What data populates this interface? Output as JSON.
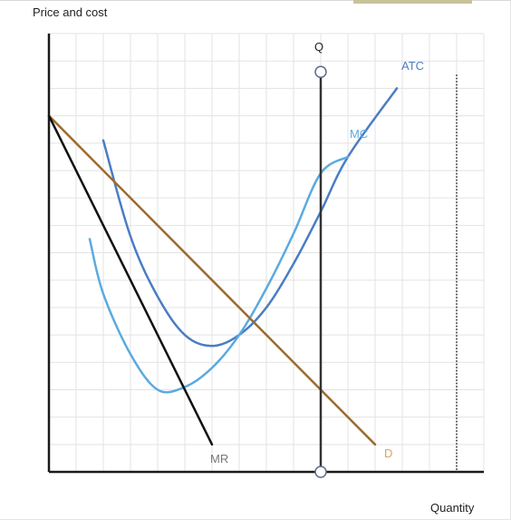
{
  "chart_data": {
    "type": "line",
    "title": "",
    "ylabel": "Price and cost",
    "xlabel": "Quantity",
    "grid": true,
    "xlim": [
      0,
      16
    ],
    "ylim": [
      0,
      16
    ],
    "series": [
      {
        "name": "ATC",
        "color": "#4a7dc4",
        "points": [
          [
            2,
            12.1
          ],
          [
            3,
            8.6
          ],
          [
            4,
            6.4
          ],
          [
            5,
            5.0
          ],
          [
            6,
            4.6
          ],
          [
            7,
            5.0
          ],
          [
            8,
            6.0
          ],
          [
            9,
            7.6
          ],
          [
            10,
            9.5
          ],
          [
            11,
            11.5
          ],
          [
            12.8,
            14
          ]
        ]
      },
      {
        "name": "MC",
        "color": "#5aaae0",
        "points": [
          [
            1.5,
            8.5
          ],
          [
            2,
            6.5
          ],
          [
            3,
            4.3
          ],
          [
            4,
            3.0
          ],
          [
            5,
            3.1
          ],
          [
            6,
            3.8
          ],
          [
            7,
            5.0
          ],
          [
            8,
            6.7
          ],
          [
            9,
            8.7
          ],
          [
            10,
            10.9
          ],
          [
            11,
            11.5
          ]
        ]
      },
      {
        "name": "D",
        "color": "#9c6b2f",
        "points": [
          [
            0,
            13.0
          ],
          [
            12,
            1.0
          ]
        ]
      },
      {
        "name": "MR",
        "color": "#111111",
        "points": [
          [
            0,
            13.0
          ],
          [
            6,
            1.0
          ]
        ]
      }
    ],
    "vertical_line": {
      "name": "Q",
      "color": "#333333",
      "x": 10,
      "y_top": 14.6,
      "y_bottom": 0
    },
    "dotted_line": {
      "color": "#555555",
      "x": 15,
      "y_top": 14.5,
      "y_bottom": 0
    }
  }
}
